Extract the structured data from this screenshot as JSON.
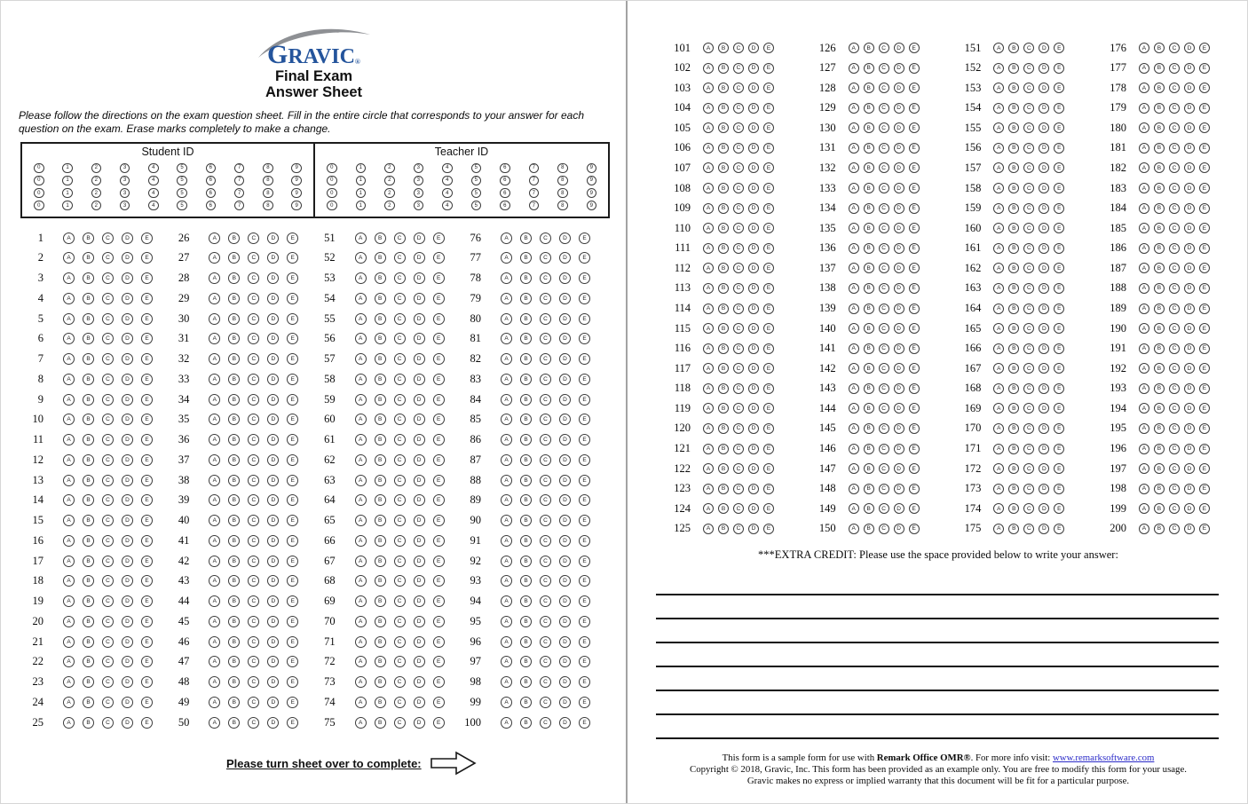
{
  "colors": {
    "logo_blue": "#24549C",
    "swoosh_gray": "#8E9094",
    "link_blue": "#2B2BC8"
  },
  "logo": {
    "g": "G",
    "rest": "RAVIC",
    "registered": "®"
  },
  "header": {
    "title_line1": "Final Exam",
    "title_line2": "Answer Sheet",
    "instructions": "Please follow the directions on the exam question sheet. Fill in the entire circle that corresponds to your answer for each question on the exam. Erase marks completely to make a change."
  },
  "id_section": {
    "student_label": "Student ID",
    "teacher_label": "Teacher ID",
    "digits": [
      "0",
      "1",
      "2",
      "3",
      "4",
      "5",
      "6",
      "7",
      "8",
      "9"
    ],
    "rows": 4
  },
  "questions": {
    "choices": [
      "A",
      "B",
      "C",
      "D",
      "E"
    ],
    "left_columns": [
      {
        "start": 1,
        "end": 25
      },
      {
        "start": 26,
        "end": 50
      },
      {
        "start": 51,
        "end": 75
      },
      {
        "start": 76,
        "end": 100
      }
    ],
    "right_columns": [
      {
        "start": 101,
        "end": 125
      },
      {
        "start": 126,
        "end": 150
      },
      {
        "start": 151,
        "end": 175
      },
      {
        "start": 176,
        "end": 200
      }
    ]
  },
  "turn_over": {
    "label": "Please turn sheet over to complete:"
  },
  "extra_credit": {
    "label": "***EXTRA CREDIT: Please use the space provided below to write your answer:",
    "lines": 7
  },
  "footer": {
    "line1_prefix": "This form is a sample form for use with ",
    "line1_bold": "Remark Office OMR®",
    "line1_after": ". For more info visit: ",
    "line1_link": "www.remarksoftware.com",
    "line2": "Copyright © 2018, Gravic, Inc. This form has been provided as an example only. You are free to modify this form for your usage.",
    "line3": "Gravic makes no express or implied warranty that this document will be fit for a particular purpose."
  }
}
